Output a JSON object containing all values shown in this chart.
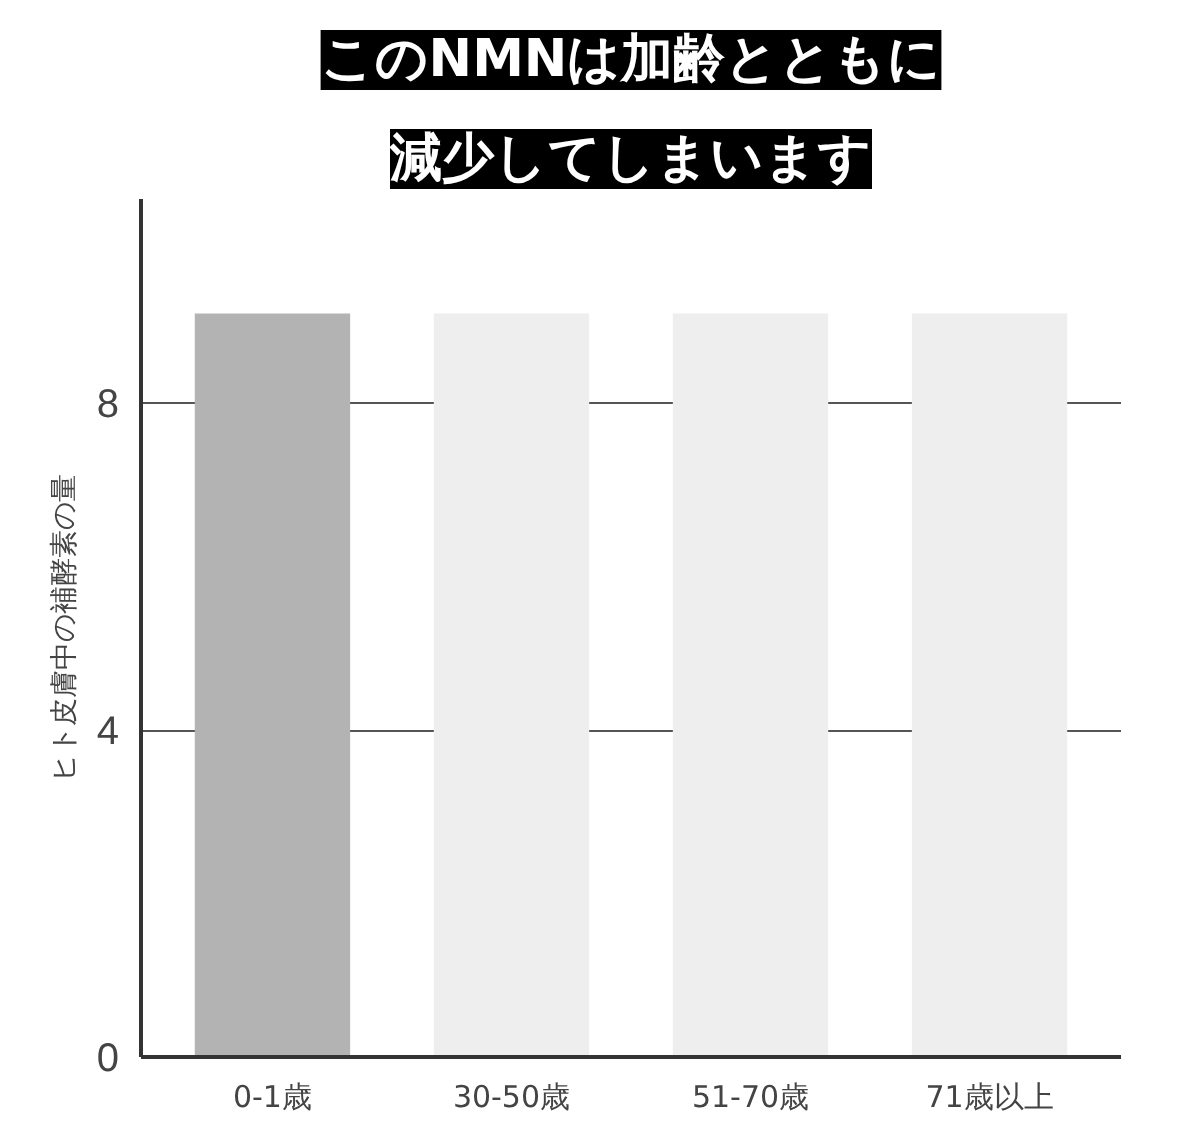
{
  "chart_data": {
    "type": "bar",
    "title": "このNMNは加齢とともに",
    "subtitle": "減少してしまいます",
    "ylabel": "ヒト皮膚中の補酵素の量",
    "categories": [
      "0-1歳",
      "30-50歳",
      "51-70歳",
      "71歳以上"
    ],
    "values": [
      9.1,
      9.1,
      9.1,
      9.1
    ],
    "colors": [
      "#b3b3b3",
      "#eeeeee",
      "#eeeeee",
      "#eeeeee"
    ],
    "ylim": [
      0,
      10.5
    ],
    "yticks": [
      0,
      4,
      8
    ],
    "grid": "y"
  }
}
